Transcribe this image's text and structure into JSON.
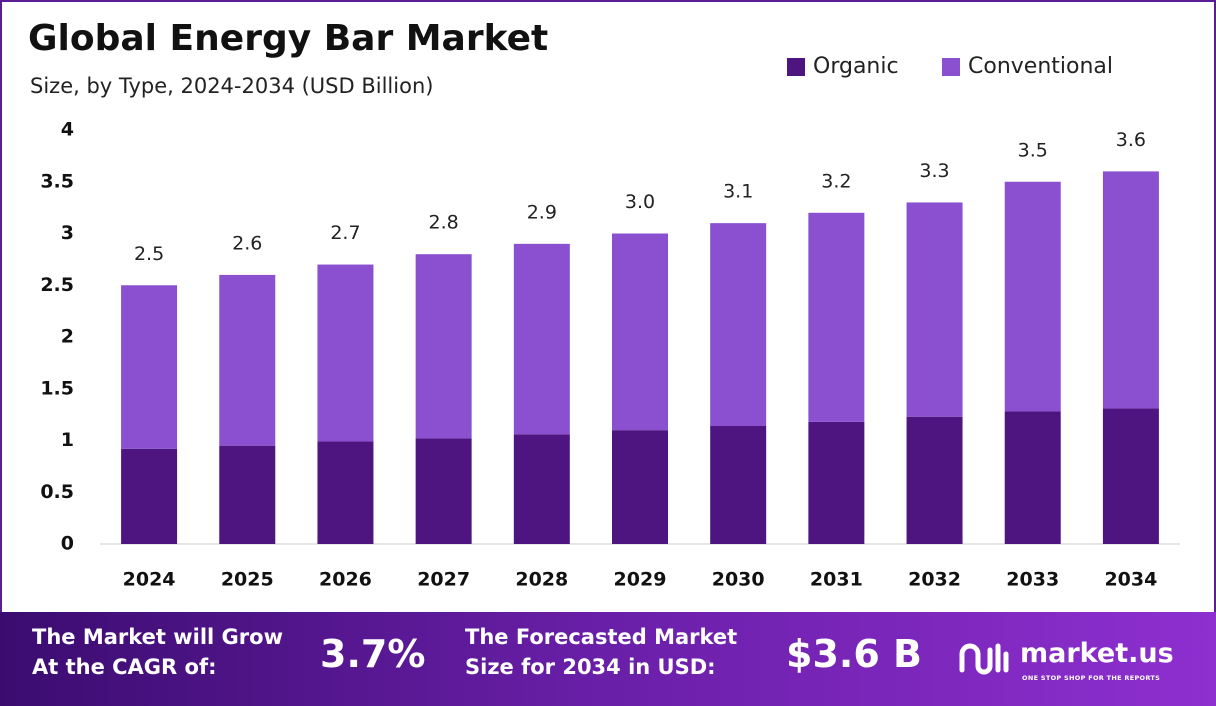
{
  "chart_data": {
    "type": "stacked_bar",
    "title": "Global Energy Bar Market",
    "subtitle": "Size, by Type, 2024-2034 (USD Billion)",
    "categories": [
      "2024",
      "2025",
      "2026",
      "2027",
      "2028",
      "2029",
      "2030",
      "2031",
      "2032",
      "2033",
      "2034"
    ],
    "series": [
      {
        "name": "Organic",
        "color": "#4e1581",
        "values": [
          0.92,
          0.95,
          0.99,
          1.02,
          1.06,
          1.1,
          1.14,
          1.18,
          1.23,
          1.28,
          1.31
        ]
      },
      {
        "name": "Conventional",
        "color": "#8a50d0",
        "values": [
          1.58,
          1.65,
          1.71,
          1.78,
          1.84,
          1.9,
          1.96,
          2.02,
          2.07,
          2.22,
          2.29
        ]
      }
    ],
    "totals": {
      "values": [
        2.5,
        2.6,
        2.7,
        2.8,
        2.9,
        3.0,
        3.1,
        3.2,
        3.3,
        3.5,
        3.6
      ],
      "value_labels": [
        "2.5",
        "2.6",
        "2.7",
        "2.8",
        "2.9",
        "3.0",
        "3.1",
        "3.2",
        "3.3",
        "3.5",
        "3.6"
      ]
    },
    "ylim": [
      0,
      4
    ],
    "yticks": [
      0,
      0.5,
      1,
      1.5,
      2,
      2.5,
      3,
      3.5,
      4
    ],
    "grid": false,
    "legend": "top-right"
  },
  "footer": {
    "cagr_text": [
      "The Market will Grow",
      "At the CAGR of:"
    ],
    "cagr_value": "3.7%",
    "forecast_text": [
      "The Forecasted Market",
      "Size for 2034 in USD:"
    ],
    "forecast_value": "$3.6 B",
    "brand": "market.us",
    "tagline": "ONE STOP SHOP FOR THE REPORTS"
  }
}
